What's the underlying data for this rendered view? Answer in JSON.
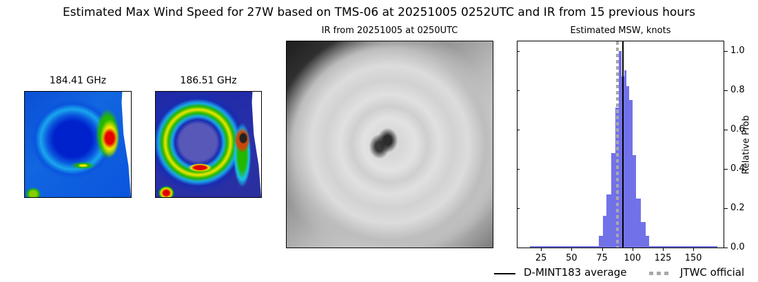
{
  "figure": {
    "suptitle": "Estimated Max Wind Speed for 27W based on TMS-06 at 20251005 0252UTC and IR from 15 previous hours",
    "panels": {
      "mw1_title": "184.41 GHz",
      "mw2_title": "186.51 GHz",
      "ir_title": "IR from 20251005 at 0250UTC",
      "hist_title": "Estimated MSW, knots"
    },
    "legend": {
      "average_label": "D-MINT183 average",
      "official_label": "JTWC official"
    },
    "colors": {
      "bar": "#7272e8",
      "average_line": "#000000",
      "official_line": "#a8a8a8"
    }
  },
  "chart_data": {
    "type": "bar",
    "title": "Estimated MSW, knots",
    "xlabel": "",
    "ylabel": "Relative Prob",
    "xlim": [
      5,
      175
    ],
    "ylim": [
      0,
      1.05
    ],
    "xticks": [
      25,
      50,
      75,
      100,
      125,
      150
    ],
    "yticks": [
      "0.0",
      "0.2",
      "0.4",
      "0.6",
      "0.8",
      "1.0"
    ],
    "bins": [
      {
        "x0": 72,
        "x1": 75,
        "value": 0.06
      },
      {
        "x0": 75,
        "x1": 78,
        "value": 0.16
      },
      {
        "x0": 78,
        "x1": 82,
        "value": 0.27
      },
      {
        "x0": 82,
        "x1": 85.5,
        "value": 0.48
      },
      {
        "x0": 85.5,
        "x1": 88,
        "value": 0.71
      },
      {
        "x0": 88,
        "x1": 90.5,
        "value": 1.0
      },
      {
        "x0": 90.5,
        "x1": 92.5,
        "value": 0.87
      },
      {
        "x0": 92.5,
        "x1": 94,
        "value": 0.9
      },
      {
        "x0": 94,
        "x1": 96.5,
        "value": 0.82
      },
      {
        "x0": 96.5,
        "x1": 99,
        "value": 0.75
      },
      {
        "x0": 99,
        "x1": 102,
        "value": 0.47
      },
      {
        "x0": 102,
        "x1": 106,
        "value": 0.25
      },
      {
        "x0": 106,
        "x1": 110,
        "value": 0.13
      },
      {
        "x0": 110,
        "x1": 113,
        "value": 0.06
      }
    ],
    "baseline_range": [
      15,
      169
    ],
    "d_mint183_average": 91.5,
    "jtwc_official": 87,
    "legend": [
      "D-MINT183 average",
      "JTWC official"
    ],
    "legend_position": "below right",
    "grid": false
  }
}
